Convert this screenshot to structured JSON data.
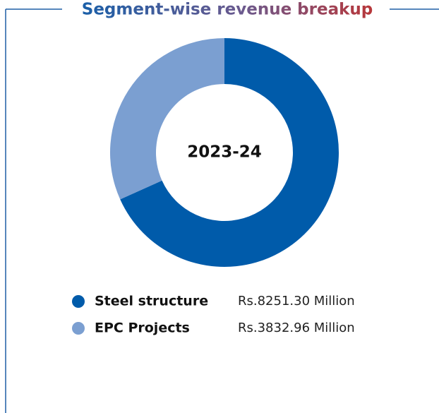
{
  "chart_data": {
    "type": "pie",
    "title": "Segment-wise revenue breakup",
    "center_label": "2023-24",
    "categories": [
      "Steel structure",
      "EPC Projects"
    ],
    "values": [
      8251.3,
      3832.96
    ],
    "value_labels": [
      "Rs.8251.30 Million",
      "Rs.3832.96 Million"
    ],
    "colors": [
      "#005baa",
      "#7b9fd1"
    ]
  }
}
